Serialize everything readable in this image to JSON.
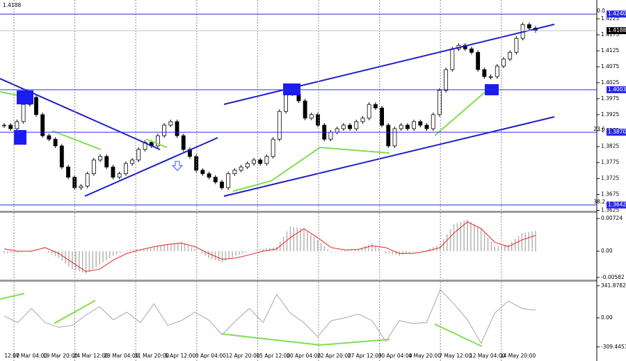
{
  "chart_data": [
    {
      "type": "candlestick",
      "last": 1.4188,
      "values": [
        1.3892,
        1.3881,
        1.3903,
        1.3957,
        1.3979,
        1.3925,
        1.3859,
        1.3848,
        1.3827,
        1.3761,
        1.3729,
        1.3696,
        1.3701,
        1.374,
        1.3783,
        1.3794,
        1.3761,
        1.3729,
        1.374,
        1.3772,
        1.3783,
        1.3816,
        1.3838,
        1.3827,
        1.3859,
        1.3892,
        1.3903,
        1.3859,
        1.3816,
        1.3794,
        1.3751,
        1.374,
        1.3729,
        1.3714,
        1.3696,
        1.374,
        1.3751,
        1.3761,
        1.3772,
        1.3783,
        1.3772,
        1.3794,
        1.3848,
        1.3935,
        1.4001,
        1.399,
        1.3968,
        1.3914,
        1.3925,
        1.3892,
        1.3848,
        1.387,
        1.3881,
        1.3892,
        1.3881,
        1.3903,
        1.3914,
        1.3957,
        1.3946,
        1.3892,
        1.3827,
        1.3881,
        1.3892,
        1.3881,
        1.3903,
        1.3892,
        1.3881,
        1.3925,
        1.4001,
        1.4066,
        1.4131,
        1.4142,
        1.4131,
        1.412,
        1.4066,
        1.4044,
        1.4044,
        1.4077,
        1.4099,
        1.412,
        1.4164,
        1.4207,
        1.4196,
        1.4188
      ],
      "ylim": [
        1.3624,
        1.4284
      ],
      "yticks": [
        1.4225,
        1.4175,
        1.4125,
        1.4075,
        1.4025,
        1.3975,
        1.3925,
        1.3875,
        1.3825,
        1.3775,
        1.3725,
        1.3675,
        1.3625
      ],
      "levels": [
        {
          "value": 1.424,
          "label": "1.4240"
        },
        1.4003,
        {
          "value": 1.387,
          "label": "1.3870"
        },
        1.3642
      ],
      "fib_labels": [
        {
          "value": 0,
          "label": "0.0"
        },
        23.6,
        38.2
      ],
      "xlabels": [
        "12:00",
        "17 Mar 04:00",
        "19 Mar 20:00",
        "24 Mar 12:00",
        "29 Mar 04:00",
        "31 Mar 20:00",
        "5 Apr 12:00",
        "8 Apr 04:00",
        "12 Apr 20:00",
        "15 Apr 12:00",
        "20 Apr 04:00",
        "22 Apr 20:00",
        "27 Apr 12:00",
        "30 Apr 04:00",
        "4 May 20:00",
        "7 May 12:00",
        "12 May 04:00",
        "14 May 20:00"
      ]
    },
    {
      "type": "macd",
      "series": [
        {
          "color": "#b4b4b4",
          "values": [
            -0.0005,
            -0.0003,
            0.0002,
            0,
            -0.0015,
            -0.004,
            -0.005,
            -0.003,
            -0.001,
            0.0002,
            0.0005,
            0.001,
            0.0015,
            0.002,
            0.0005,
            -0.0015,
            -0.0025,
            -0.001,
            0,
            0.0005,
            0.001,
            0.0055,
            0.005,
            0.0025,
            -0.0002,
            0.0003,
            0.0005,
            0.0018,
            -0.0005,
            -0.001,
            -0.0002,
            0.0003,
            0.0015,
            0.006,
            0.007,
            0.005,
            0.001,
            0.0015,
            0.004,
            0.0045
          ]
        },
        {
          "color": "#e8231f",
          "values": [
            0.0005,
            0,
            0,
            0.0008,
            -0.0005,
            -0.0025,
            -0.0045,
            -0.004,
            -0.002,
            -0.0005,
            0.0003,
            0.001,
            0.0015,
            0.0018,
            0.001,
            -0.0005,
            -0.0018,
            -0.0015,
            -0.0008,
            0,
            0.0005,
            0.003,
            0.005,
            0.003,
            0.0008,
            0.0003,
            0.0004,
            0.0012,
            0.0008,
            -0.0005,
            -0.0005,
            0,
            0.0008,
            0.004,
            0.0065,
            0.005,
            0.002,
            0.001,
            0.0025,
            0.0035
          ]
        }
      ],
      "ylim": [
        -0.0063,
        0.0085
      ],
      "yticks": [
        0.00724,
        {
          "value": 0,
          "label": "0.00"
        },
        -0.00582
      ]
    },
    {
      "type": "line",
      "color": "#b4b4b4",
      "values": [
        20,
        -50,
        100,
        -50,
        -100,
        -80,
        30,
        120,
        -20,
        60,
        -50,
        150,
        -80,
        -30,
        60,
        -20,
        -180,
        -30,
        100,
        -50,
        250,
        50,
        -50,
        -200,
        -30,
        0,
        40,
        -30,
        -250,
        -30,
        -60,
        -50,
        300,
        150,
        -20,
        -270,
        50,
        180,
        100,
        80
      ],
      "ylim": [
        -459,
        385
      ],
      "yticks": [
        341.8782,
        {
          "value": 0,
          "label": "0.00"
        },
        -309.4451
      ]
    }
  ]
}
